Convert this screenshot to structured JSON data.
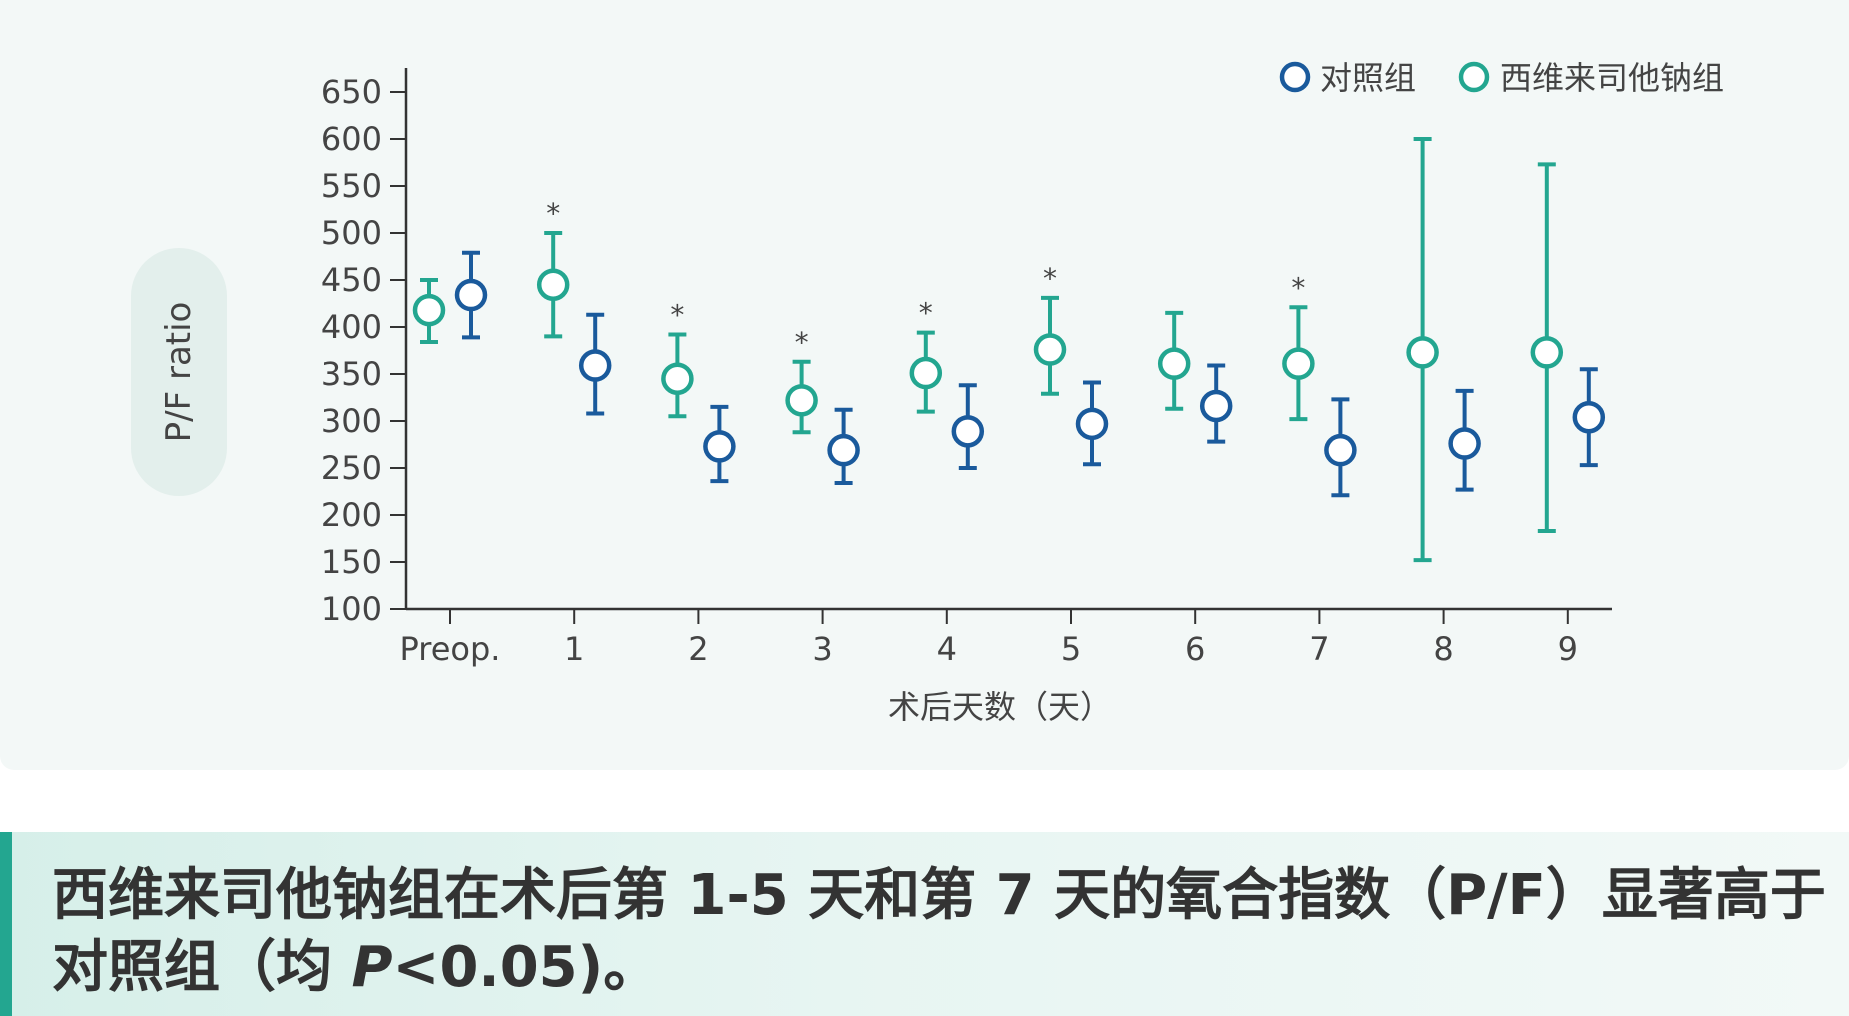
{
  "chart_data": {
    "type": "scatter",
    "ylabel": "P/F ratio",
    "xlabel": "术后天数（天）",
    "ylim": [
      100,
      650
    ],
    "yticks": [
      100,
      150,
      200,
      250,
      300,
      350,
      400,
      450,
      500,
      550,
      600,
      650
    ],
    "categories": [
      "Preop.",
      "1",
      "2",
      "3",
      "4",
      "5",
      "6",
      "7",
      "8",
      "9"
    ],
    "legend_position": "top-right",
    "grid": false,
    "series": [
      {
        "name": "对照组",
        "color": "#1a5a9c",
        "mean": [
          434,
          359,
          273,
          269,
          289,
          297,
          316,
          269,
          276,
          304
        ],
        "lower": [
          389,
          308,
          236,
          234,
          250,
          254,
          278,
          221,
          227,
          253
        ],
        "upper": [
          479,
          413,
          315,
          312,
          338,
          341,
          359,
          323,
          332,
          355
        ]
      },
      {
        "name": "西维来司他钠组",
        "color": "#23a690",
        "mean": [
          418,
          445,
          345,
          322,
          351,
          376,
          361,
          361,
          373,
          373
        ],
        "lower": [
          384,
          390,
          305,
          288,
          310,
          329,
          313,
          302,
          152,
          183
        ],
        "upper": [
          450,
          500,
          392,
          363,
          394,
          431,
          415,
          421,
          600,
          573
        ],
        "significant": [
          false,
          true,
          true,
          true,
          true,
          true,
          false,
          true,
          false,
          false
        ],
        "significance_label": "*"
      }
    ]
  },
  "caption": {
    "line1": "西维来司他钠组在术后第 1-5 天和第 7 天的氧合指数（P/F）显著高于",
    "line2_pre": "对照组（均 ",
    "line2_p": "P",
    "line2_post": "<0.05)。"
  }
}
